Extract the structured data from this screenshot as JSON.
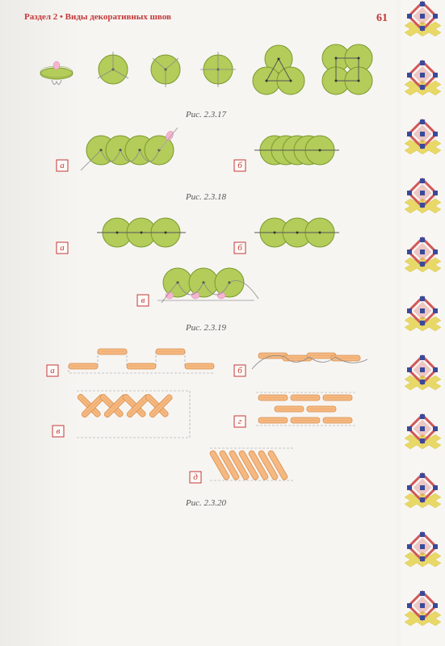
{
  "header": {
    "section": "Раздел 2 • Виды декоративных швов",
    "page_num": "61"
  },
  "captions": {
    "c1": "Рис. 2.3.17",
    "c2": "Рис. 2.3.18",
    "c3": "Рис. 2.3.19",
    "c4": "Рис. 2.3.20"
  },
  "labels": {
    "a": "а",
    "b": "б",
    "v": "в",
    "g": "г",
    "d": "д"
  },
  "colors": {
    "sequin_fill": "#b3cc5a",
    "sequin_stroke": "#7a9a2e",
    "bugle_fill": "#f5b880",
    "bugle_stroke": "#d89050",
    "bead_pink": "#f5b5d0",
    "label_red": "#c43838",
    "border_red": "#d05858",
    "border_blue": "#3a4a9a",
    "border_yellow": "#e8d868"
  },
  "fig17": {
    "circle_r": 18,
    "spacing": 70
  },
  "fig18": {
    "circle_r": 18,
    "overlap": 24
  },
  "fig19": {
    "circle_r": 18
  },
  "fig20": {
    "bugle_len": 36,
    "bugle_h": 7
  },
  "border": {
    "motif_count": 11
  }
}
